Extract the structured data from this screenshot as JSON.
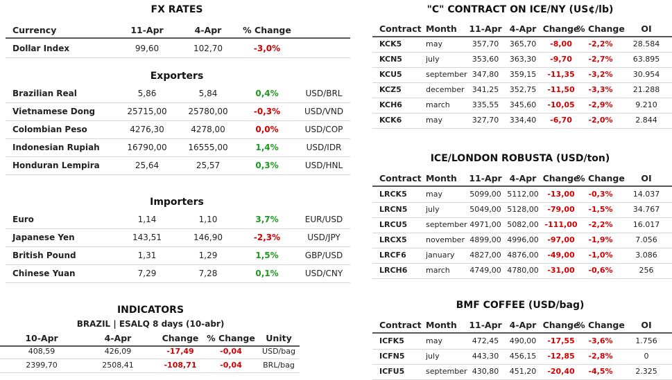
{
  "fx_rates": {
    "title": "FX RATES",
    "header": [
      "Currency",
      "11-Apr",
      "4-Apr",
      "% Change"
    ],
    "rows": [
      [
        "Dollar Index",
        "99,60",
        "102,70",
        "-3,0%"
      ]
    ]
  },
  "exporters": {
    "title": "Exporters",
    "rows": [
      [
        "Brazilian Real",
        "5,86",
        "5,84",
        "0,4%",
        "USD/BRL"
      ],
      [
        "Vietnamese Dong",
        "25715,00",
        "25780,00",
        "-0,3%",
        "USD/VND"
      ],
      [
        "Colombian Peso",
        "4276,30",
        "4278,00",
        "0,0%",
        "USD/COP"
      ],
      [
        "Indonesian Rupiah",
        "16790,00",
        "16555,00",
        "1,4%",
        "USD/IDR"
      ],
      [
        "Honduran Lempira",
        "25,64",
        "25,57",
        "0,3%",
        "USD/HNL"
      ]
    ]
  },
  "importers": {
    "title": "Importers",
    "rows": [
      [
        "Euro",
        "1,14",
        "1,10",
        "3,7%",
        "EUR/USD"
      ],
      [
        "Japanese Yen",
        "143,51",
        "146,90",
        "-2,3%",
        "USD/JPY"
      ],
      [
        "British Pound",
        "1,31",
        "1,29",
        "1,5%",
        "GBP/USD"
      ],
      [
        "Chinese Yuan",
        "7,29",
        "7,28",
        "0,1%",
        "USD/CNY"
      ]
    ]
  },
  "indicators": {
    "title": "INDICATORS",
    "subtitle": "BRAZIL | ESALQ 8 days (10-abr)",
    "header": [
      "10-Apr",
      "4-Apr",
      "Change",
      "% Change",
      "Unity"
    ],
    "rows": [
      [
        "408,59",
        "426,09",
        "-17,49",
        "-0,04",
        "USD/bag"
      ],
      [
        "2399,70",
        "2508,41",
        "-108,71",
        "-0,04",
        "BRL/bag"
      ]
    ]
  },
  "ice_ny": {
    "title": "\"C\" CONTRACT ON ICE/NY (US¢/lb)",
    "header": [
      "Contract",
      "Month",
      "11-Apr",
      "4-Apr",
      "Change",
      "% Change",
      "OI"
    ],
    "rows": [
      [
        "KCK5",
        "may",
        "357,70",
        "365,70",
        "-8,00",
        "-2,2%",
        "28.584"
      ],
      [
        "KCN5",
        "july",
        "353,60",
        "363,30",
        "-9,70",
        "-2,7%",
        "63.895"
      ],
      [
        "KCU5",
        "september",
        "347,80",
        "359,15",
        "-11,35",
        "-3,2%",
        "30.954"
      ],
      [
        "KCZ5",
        "december",
        "341,25",
        "352,75",
        "-11,50",
        "-3,3%",
        "21.288"
      ],
      [
        "KCH6",
        "march",
        "335,55",
        "345,60",
        "-10,05",
        "-2,9%",
        "9.210"
      ],
      [
        "KCK6",
        "may",
        "327,70",
        "334,40",
        "-6,70",
        "-2,0%",
        "2.844"
      ]
    ]
  },
  "ice_london": {
    "title": "ICE/LONDON ROBUSTA (USD/ton)",
    "header": [
      "Contract",
      "Month",
      "11-Apr",
      "4-Apr",
      "Change",
      "% Change",
      "OI"
    ],
    "rows": [
      [
        "LRCK5",
        "may",
        "5099,00",
        "5112,00",
        "-13,00",
        "-0,3%",
        "14.037"
      ],
      [
        "LRCN5",
        "july",
        "5049,00",
        "5128,00",
        "-79,00",
        "-1,5%",
        "34.767"
      ],
      [
        "LRCU5",
        "september",
        "4971,00",
        "5082,00",
        "-111,00",
        "-2,2%",
        "16.017"
      ],
      [
        "LRCX5",
        "november",
        "4899,00",
        "4996,00",
        "-97,00",
        "-1,9%",
        "7.056"
      ],
      [
        "LRCF6",
        "january",
        "4827,00",
        "4876,00",
        "-49,00",
        "-1,0%",
        "3.086"
      ],
      [
        "LRCH6",
        "march",
        "4749,00",
        "4780,00",
        "-31,00",
        "-0,6%",
        "256"
      ]
    ]
  },
  "bmf": {
    "title": "BMF COFFEE (USD/bag)",
    "header": [
      "Contract",
      "Month",
      "11-Apr",
      "4-Apr",
      "Change",
      "% Change",
      "OI"
    ],
    "rows": [
      [
        "ICFK5",
        "may",
        "472,45",
        "490,00",
        "-17,55",
        "-3,6%",
        "1.756"
      ],
      [
        "ICFN5",
        "july",
        "443,30",
        "456,15",
        "-12,85",
        "-2,8%",
        "0"
      ],
      [
        "ICFU5",
        "september",
        "430,80",
        "451,20",
        "-20,40",
        "-4,5%",
        "2.325"
      ]
    ]
  }
}
